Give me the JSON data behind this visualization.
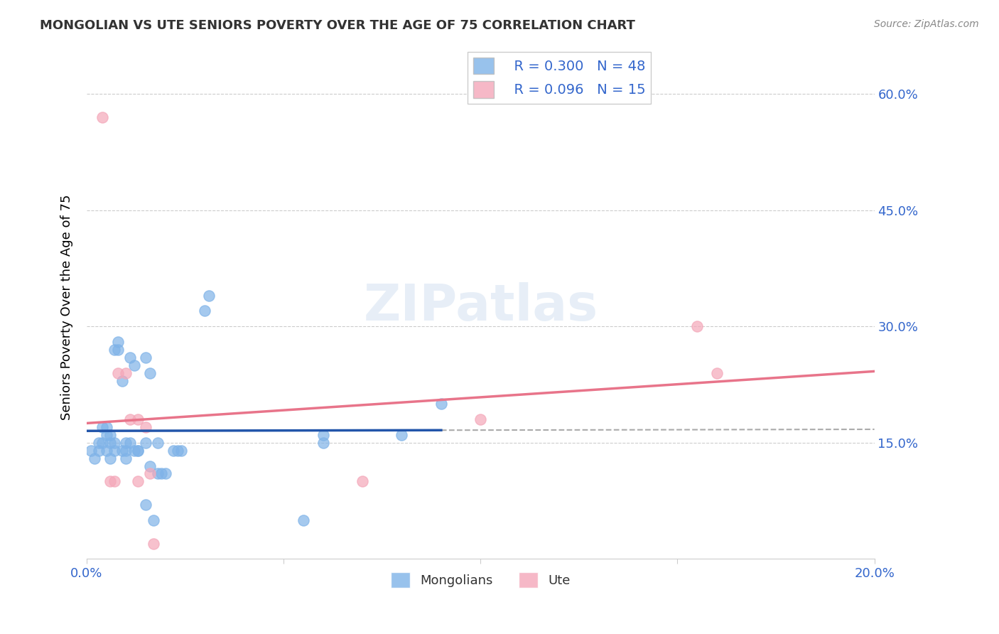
{
  "title": "MONGOLIAN VS UTE SENIORS POVERTY OVER THE AGE OF 75 CORRELATION CHART",
  "source": "Source: ZipAtlas.com",
  "ylabel": "Seniors Poverty Over the Age of 75",
  "xlabel": "",
  "xlim": [
    0.0,
    0.2
  ],
  "ylim": [
    0.0,
    0.65
  ],
  "x_ticks": [
    0.0,
    0.05,
    0.1,
    0.15,
    0.2
  ],
  "x_tick_labels": [
    "0.0%",
    "",
    "",
    "",
    "20.0%"
  ],
  "y_ticks": [
    0.15,
    0.3,
    0.45,
    0.6
  ],
  "y_tick_labels": [
    "15.0%",
    "30.0%",
    "45.0%",
    "60.0%"
  ],
  "mongolian_R": "0.300",
  "mongolian_N": "48",
  "ute_R": "0.096",
  "ute_N": "15",
  "mongolian_color": "#7fb3e8",
  "ute_color": "#f4a7b9",
  "mongolian_line_color": "#2255aa",
  "ute_line_color": "#e8748a",
  "dashed_line_color": "#aaaaaa",
  "mongolian_x": [
    0.001,
    0.002,
    0.003,
    0.003,
    0.004,
    0.004,
    0.005,
    0.005,
    0.005,
    0.006,
    0.006,
    0.006,
    0.007,
    0.007,
    0.007,
    0.008,
    0.008,
    0.009,
    0.009,
    0.01,
    0.01,
    0.01,
    0.011,
    0.011,
    0.012,
    0.012,
    0.013,
    0.013,
    0.015,
    0.015,
    0.015,
    0.016,
    0.016,
    0.017,
    0.018,
    0.018,
    0.019,
    0.02,
    0.022,
    0.023,
    0.024,
    0.03,
    0.031,
    0.055,
    0.06,
    0.06,
    0.08,
    0.09
  ],
  "mongolian_y": [
    0.14,
    0.13,
    0.15,
    0.14,
    0.17,
    0.15,
    0.14,
    0.16,
    0.17,
    0.13,
    0.15,
    0.16,
    0.14,
    0.15,
    0.27,
    0.28,
    0.27,
    0.14,
    0.23,
    0.13,
    0.14,
    0.15,
    0.15,
    0.26,
    0.14,
    0.25,
    0.14,
    0.14,
    0.26,
    0.15,
    0.07,
    0.12,
    0.24,
    0.05,
    0.15,
    0.11,
    0.11,
    0.11,
    0.14,
    0.14,
    0.14,
    0.32,
    0.34,
    0.05,
    0.15,
    0.16,
    0.16,
    0.2
  ],
  "ute_x": [
    0.004,
    0.006,
    0.007,
    0.008,
    0.01,
    0.011,
    0.013,
    0.013,
    0.015,
    0.016,
    0.017,
    0.07,
    0.1,
    0.155,
    0.16
  ],
  "ute_y": [
    0.57,
    0.1,
    0.1,
    0.24,
    0.24,
    0.18,
    0.1,
    0.18,
    0.17,
    0.11,
    0.02,
    0.1,
    0.18,
    0.3,
    0.24
  ],
  "watermark": "ZIPatlas"
}
